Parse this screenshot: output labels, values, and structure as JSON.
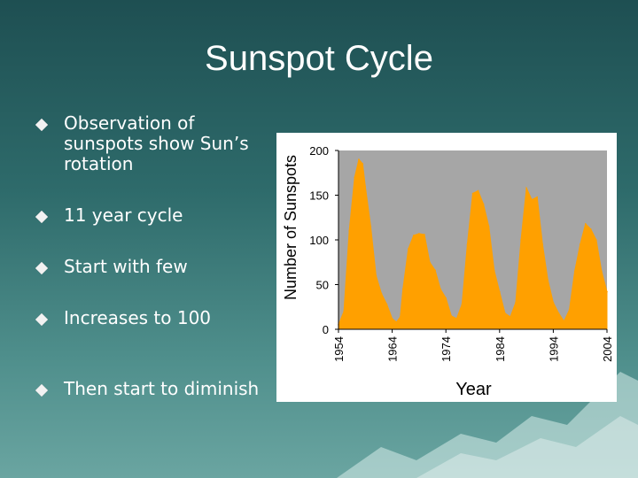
{
  "slide": {
    "title": "Sunspot Cycle",
    "bullets": [
      {
        "text": "Observation of sunspots show Sun’s rotation"
      },
      {
        "text": "11 year cycle"
      },
      {
        "text": "Start with few"
      },
      {
        "text": "Increases to 100"
      },
      {
        "text": "Then start to diminish"
      }
    ]
  },
  "colors": {
    "series": "#ffa000",
    "plot_bg": "#a6a6a6",
    "bullet": "#f2f2f2"
  },
  "chart_data": {
    "type": "area",
    "xlabel": "Year",
    "ylabel": "Number of Sunspots",
    "xlim": [
      1954,
      2004
    ],
    "ylim": [
      0,
      200
    ],
    "x_ticks": [
      "1954",
      "1964",
      "1974",
      "1984",
      "1994",
      "2004"
    ],
    "y_ticks": [
      "0",
      "50",
      "100",
      "150",
      "200"
    ],
    "grid": false,
    "series": [
      {
        "x": [
          1954,
          1955,
          1956,
          1957,
          1957.8,
          1958.5,
          1959,
          1960,
          1961,
          1962,
          1963,
          1964,
          1964.8,
          1965.5,
          1966,
          1967,
          1968,
          1969,
          1970,
          1971,
          1972,
          1973,
          1974,
          1975,
          1976,
          1977,
          1978,
          1979,
          1980,
          1981,
          1982,
          1983,
          1984,
          1985,
          1986,
          1987,
          1988,
          1989,
          1990,
          1991,
          1992,
          1993,
          1994,
          1995,
          1996,
          1997,
          1998,
          1999,
          2000,
          2001,
          2002,
          2003,
          2004
        ],
        "values": [
          5,
          20,
          110,
          170,
          190,
          185,
          160,
          115,
          60,
          40,
          28,
          12,
          8,
          14,
          45,
          90,
          105,
          107,
          106,
          75,
          66,
          45,
          35,
          15,
          12,
          28,
          95,
          152,
          155,
          140,
          115,
          66,
          42,
          18,
          14,
          30,
          100,
          158,
          145,
          148,
          95,
          55,
          30,
          18,
          9,
          22,
          65,
          95,
          118,
          112,
          100,
          65,
          42
        ]
      }
    ]
  }
}
